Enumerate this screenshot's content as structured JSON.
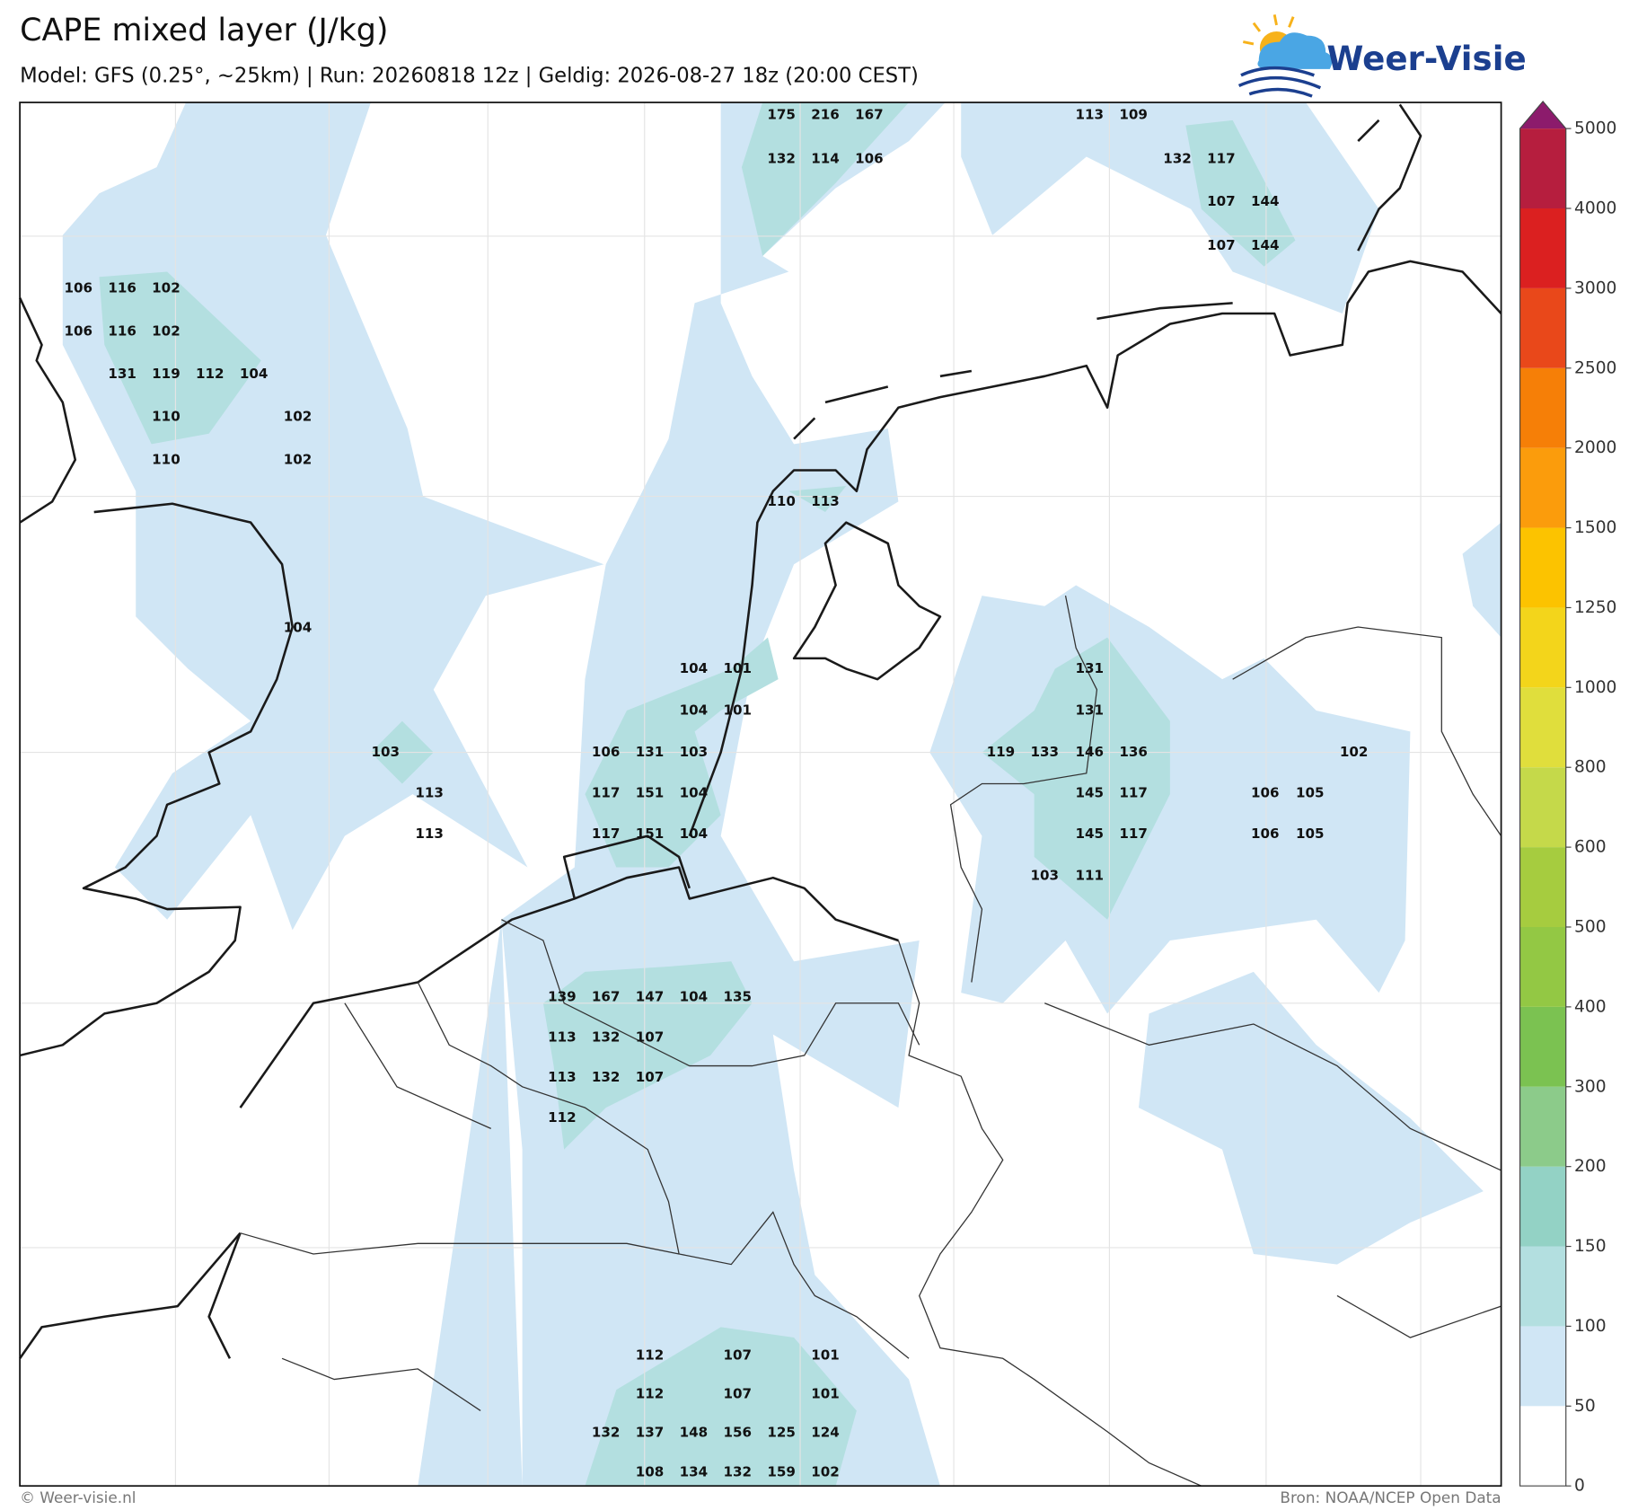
{
  "header": {
    "title": "CAPE mixed layer (J/kg)",
    "subtitle": "Model: GFS (0.25°, ~25km)  |  Run: 20260818 12z  |  Geldig: 2026-08-27 18z (20:00 CEST)"
  },
  "logo": {
    "text": "Weer-Visie"
  },
  "map": {
    "labels": [
      175,
      216,
      167,
      113,
      109,
      132,
      114,
      106,
      132,
      117,
      107,
      144,
      107,
      144,
      106,
      116,
      102,
      106,
      116,
      102,
      131,
      119,
      112,
      104,
      110,
      102,
      110,
      102,
      110,
      113,
      104,
      104,
      101,
      131,
      104,
      101,
      131,
      103,
      106,
      131,
      103,
      119,
      133,
      146,
      136,
      102,
      113,
      117,
      151,
      104,
      145,
      117,
      106,
      105,
      113,
      117,
      151,
      104,
      145,
      117,
      106,
      105,
      103,
      111,
      139,
      167,
      147,
      104,
      135,
      113,
      132,
      107,
      113,
      132,
      107,
      112,
      112,
      107,
      101,
      112,
      107,
      101,
      132,
      137,
      148,
      156,
      125,
      124,
      108,
      134,
      132,
      159,
      102
    ]
  },
  "colorbar": {
    "ticks": [
      0,
      50,
      100,
      150,
      200,
      300,
      400,
      500,
      600,
      800,
      1000,
      1250,
      1500,
      2000,
      2500,
      3000,
      4000,
      5000
    ],
    "colors": [
      "#ffffff",
      "#d0e6f5",
      "#b3dfe0",
      "#93d2c5",
      "#8ccb8a",
      "#7bc251",
      "#93c844",
      "#a6cc3f",
      "#c5d94a",
      "#e0de3c",
      "#f3d51b",
      "#fcc300",
      "#fb9c0c",
      "#f67f07",
      "#e9481a",
      "#db2020",
      "#b61e3e",
      "#8c1b6c"
    ]
  },
  "footer": {
    "copyright": "© Weer-visie.nl",
    "source": "Bron: NOAA/NCEP Open Data"
  }
}
